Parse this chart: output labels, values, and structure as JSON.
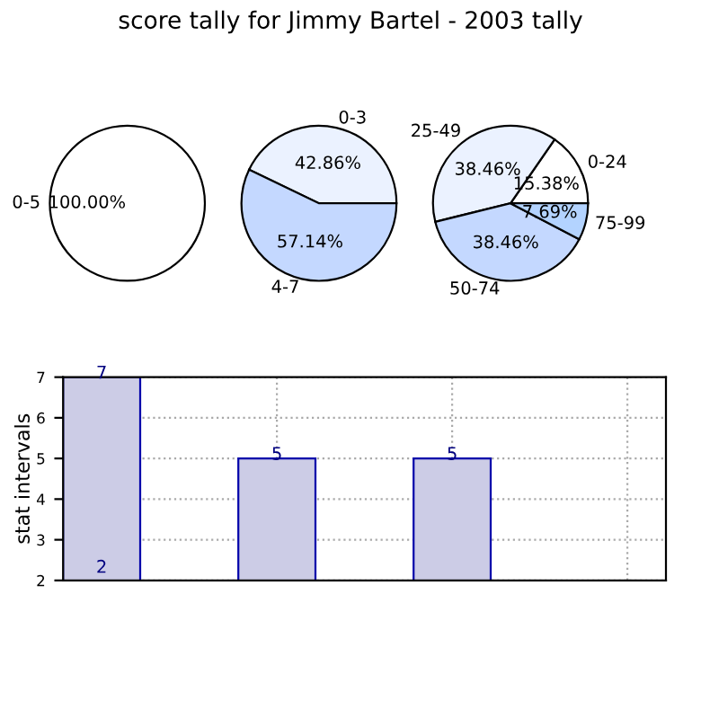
{
  "chart_data": [
    {
      "type": "pie",
      "title": "score tally for Jimmy Bartel - 2003 tally",
      "categories": [
        "0-5"
      ],
      "values": [
        100.0
      ],
      "colors": [
        "#ffffff"
      ],
      "value_labels": [
        "100.00%"
      ]
    },
    {
      "type": "pie",
      "categories": [
        "0-3",
        "4-7"
      ],
      "values": [
        42.86,
        57.14
      ],
      "colors": [
        "#ebf2ff",
        "#c4d8ff"
      ],
      "value_labels": [
        "42.86%",
        "57.14%"
      ]
    },
    {
      "type": "pie",
      "categories": [
        "0-24",
        "25-49",
        "50-74",
        "75-99"
      ],
      "values": [
        15.38,
        38.46,
        38.46,
        7.69
      ],
      "colors": [
        "#ffffff",
        "#ebf2ff",
        "#c4d8ff",
        "#b3d3ff"
      ],
      "value_labels": [
        "15.38%",
        "38.46%",
        "38.46%",
        "7.69%"
      ]
    },
    {
      "type": "bar",
      "ylabel": "stat intervals",
      "categories": [
        null,
        null,
        null,
        null
      ],
      "values": [
        7,
        5,
        5,
        null
      ],
      "color": "#cccce6",
      "data_labels": true,
      "ylim": [
        2,
        7
      ],
      "yticks": [
        2,
        3,
        4,
        5,
        6,
        7
      ],
      "grid": true,
      "tick_labels": "y",
      "annotations": [
        "2"
      ]
    }
  ]
}
